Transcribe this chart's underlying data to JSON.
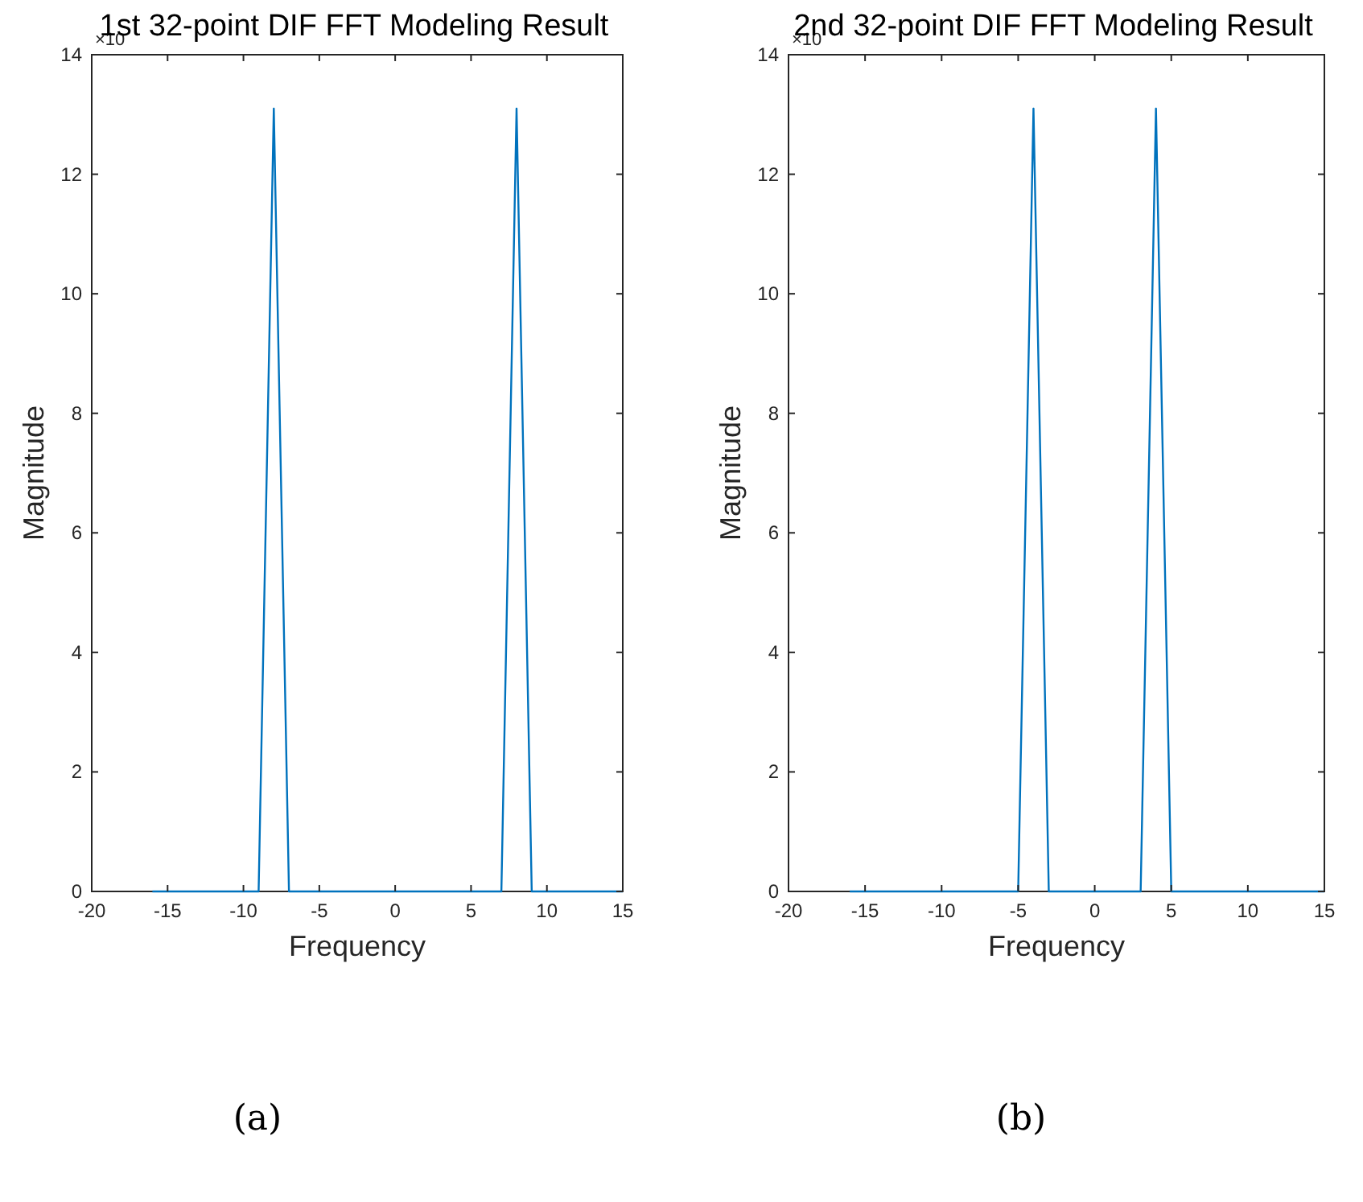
{
  "chart_data": [
    {
      "type": "line",
      "title": "1st 32-point DIF FFT Modeling Result",
      "xlabel": "Frequency",
      "ylabel": "Magnitude",
      "annotations": [
        "×10",
        "(a)"
      ],
      "xlim": [
        -20,
        15
      ],
      "xticks": [
        -20,
        -15,
        -10,
        -5,
        0,
        5,
        10,
        15
      ],
      "ylim": [
        0,
        14
      ],
      "yticks": [
        0,
        2,
        4,
        6,
        8,
        10,
        12,
        14
      ],
      "grid": false,
      "series": [
        {
          "color": "#0072bd",
          "x": [
            -16,
            -15,
            -14,
            -13,
            -12,
            -11,
            -10,
            -9,
            -8,
            -7,
            -6,
            -5,
            -4,
            -3,
            -2,
            -1,
            0,
            1,
            2,
            3,
            4,
            5,
            6,
            7,
            8,
            9,
            10,
            11,
            12,
            13,
            14,
            15
          ],
          "values": [
            0,
            0,
            0,
            0,
            0,
            0,
            0,
            0,
            13.1,
            0,
            0,
            0,
            0,
            0,
            0,
            0,
            0,
            0,
            0,
            0,
            0,
            0,
            0,
            0,
            13.1,
            0,
            0,
            0,
            0,
            0,
            0,
            0
          ]
        }
      ]
    },
    {
      "type": "line",
      "title": "2nd 32-point DIF FFT Modeling Result",
      "xlabel": "Frequency",
      "ylabel": "Magnitude",
      "annotations": [
        "×10",
        "(b)"
      ],
      "xlim": [
        -20,
        15
      ],
      "xticks": [
        -20,
        -15,
        -10,
        -5,
        0,
        5,
        10,
        15
      ],
      "ylim": [
        0,
        14
      ],
      "yticks": [
        0,
        2,
        4,
        6,
        8,
        10,
        12,
        14
      ],
      "grid": false,
      "series": [
        {
          "color": "#0072bd",
          "x": [
            -16,
            -15,
            -14,
            -13,
            -12,
            -11,
            -10,
            -9,
            -8,
            -7,
            -6,
            -5,
            -4,
            -3,
            -2,
            -1,
            0,
            1,
            2,
            3,
            4,
            5,
            6,
            7,
            8,
            9,
            10,
            11,
            12,
            13,
            14,
            15
          ],
          "values": [
            0,
            0,
            0,
            0,
            0,
            0,
            0,
            0,
            0,
            0,
            0,
            0,
            13.1,
            0,
            0,
            0,
            0,
            0,
            0,
            0,
            13.1,
            0,
            0,
            0,
            0,
            0,
            0,
            0,
            0,
            0,
            0,
            0
          ]
        }
      ]
    }
  ]
}
